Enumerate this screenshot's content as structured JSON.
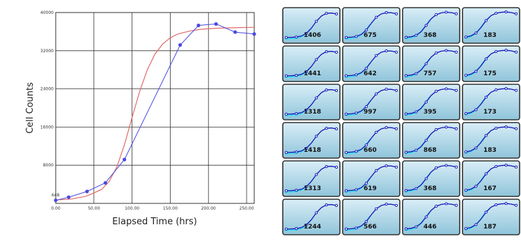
{
  "colors": {
    "plot_background": "#ffffff",
    "grid": "#333333",
    "data_series": "#4a4adf",
    "fit_curve": "#e06a6a",
    "thumbnail_gradient_top": "#d9eef7",
    "thumbnail_gradient_bottom": "#8fc4da",
    "thumbnail_line": "#1414b8",
    "thumbnail_highlight": "#33ddee"
  },
  "chart_data": [
    {
      "type": "line",
      "title": "",
      "xlabel": "Elapsed Time (hrs)",
      "ylabel": "Cell Counts",
      "xlim": [
        0,
        260
      ],
      "ylim": [
        0,
        40000
      ],
      "x_ticks": [
        0,
        50,
        100,
        150,
        200,
        250
      ],
      "x_tick_labels": [
        "0.00",
        "50.00",
        "100.00",
        "150.00",
        "200.00",
        "250.00"
      ],
      "y_ticks": [
        8000,
        16000,
        24000,
        32000,
        40000
      ],
      "y_tick_labels": [
        "8000",
        "16000",
        "24000",
        "32000",
        "40000"
      ],
      "grid": true,
      "legend": "none",
      "annotations": [
        {
          "text": "648",
          "x": 0,
          "y": 648
        }
      ],
      "series": [
        {
          "marker": "circle",
          "x": [
            0,
            17,
            41,
            65,
            90,
            163,
            187,
            210,
            235,
            260
          ],
          "y": [
            648,
            1300,
            2500,
            4300,
            9200,
            33200,
            37300,
            37600,
            35900,
            35500
          ]
        },
        {
          "marker": "none",
          "curve": "fit",
          "x": [
            0,
            20,
            40,
            60,
            70,
            80,
            90,
            100,
            110,
            120,
            130,
            140,
            150,
            160,
            175,
            190,
            210,
            230,
            260
          ],
          "y": [
            700,
            900,
            1500,
            2900,
            4600,
            7600,
            12300,
            18000,
            23500,
            28000,
            31300,
            33400,
            34700,
            35500,
            36100,
            36500,
            36700,
            36800,
            36900
          ]
        }
      ]
    },
    {
      "type": "table",
      "title": "",
      "rows": 6,
      "columns": 4,
      "cells": [
        [
          1406,
          675,
          368,
          183
        ],
        [
          1441,
          642,
          757,
          175
        ],
        [
          1318,
          997,
          395,
          173
        ],
        [
          1418,
          660,
          868,
          183
        ],
        [
          1313,
          619,
          368,
          167
        ],
        [
          1244,
          566,
          446,
          187
        ]
      ]
    }
  ]
}
